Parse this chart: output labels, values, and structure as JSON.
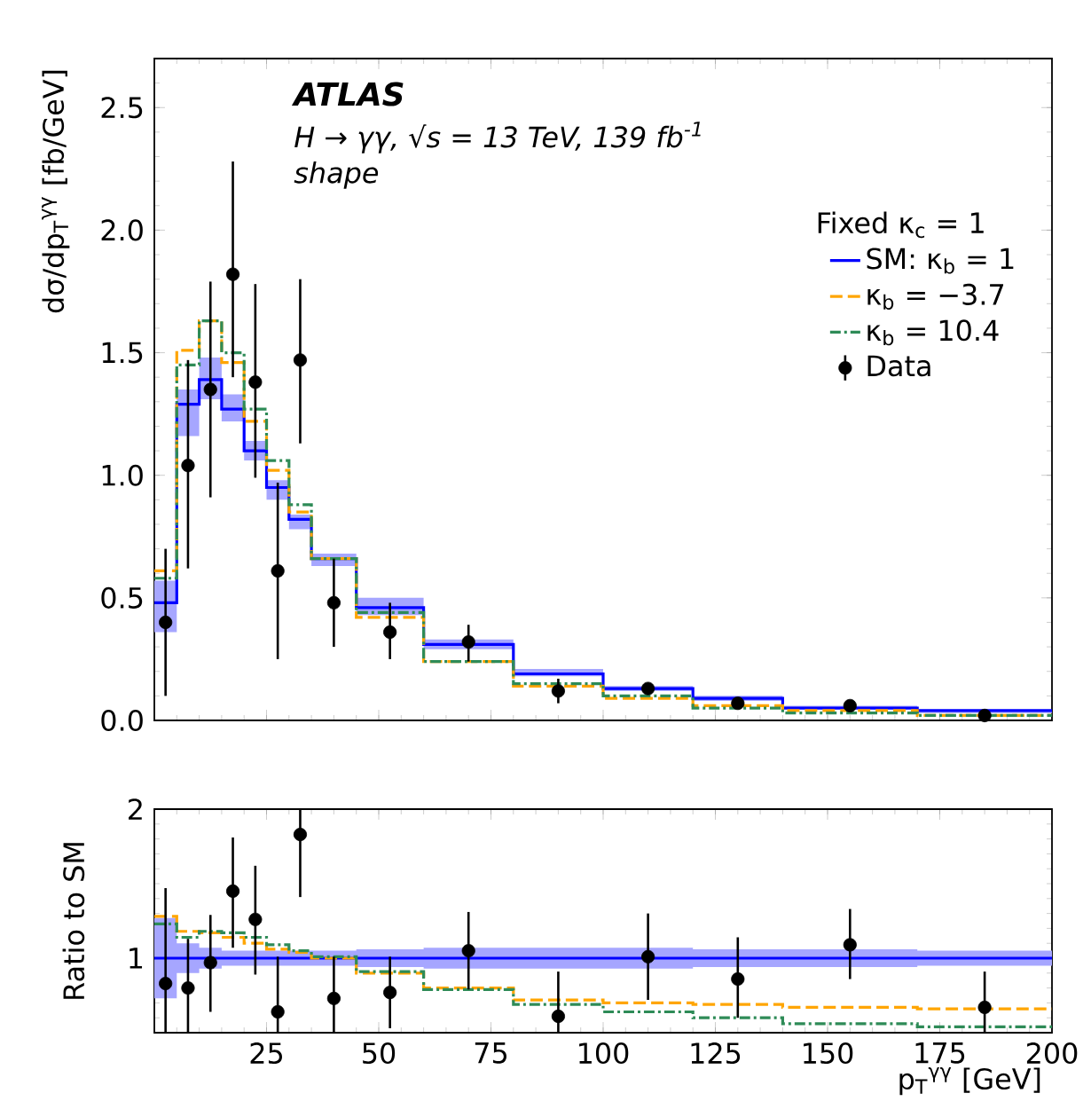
{
  "chart_data": [
    {
      "type": "step",
      "ylabel": "dσ/dp$_{T}$$^{γγ}$ [fb/GeV]",
      "legend_title": "Fixed κ$_{c}$ = 1",
      "legend": "top right",
      "annotations": [
        "**ATLAS**",
        "H → γγ, √s = 13 TeV, 139 fb$^{-1}$",
        "shape"
      ],
      "xlim": [
        0,
        200
      ],
      "xticks": [
        25,
        50,
        75,
        100,
        125,
        150,
        175,
        200
      ],
      "ylim": [
        0,
        2.7
      ],
      "yticks": [
        {
          "value": 0,
          "label": "0.0"
        },
        0.5,
        {
          "value": 1,
          "label": "1.0"
        },
        1.5,
        {
          "value": 2,
          "label": "2.0"
        },
        2.5
      ],
      "tick_labels": "y",
      "series": [
        {
          "name": "SM: κ$_{b}$ = 1",
          "type": "step",
          "color": "#0000ff",
          "line_style": "solid",
          "x": [
            0,
            5,
            10,
            15,
            20,
            25,
            30,
            35,
            45,
            60,
            80,
            100,
            120,
            140,
            170,
            200
          ],
          "values": [
            0.48,
            1.29,
            1.39,
            1.27,
            1.1,
            0.95,
            0.82,
            0.66,
            0.46,
            0.31,
            0.19,
            0.13,
            0.09,
            0.05,
            0.04,
            0.04
          ],
          "lower": [
            0.36,
            1.16,
            1.31,
            1.22,
            1.06,
            0.9,
            0.78,
            0.63,
            0.43,
            0.29,
            0.18,
            0.12,
            0.08,
            0.05,
            0.03,
            0.03
          ],
          "upper": [
            0.57,
            1.35,
            1.48,
            1.33,
            1.14,
            0.98,
            0.84,
            0.68,
            0.5,
            0.33,
            0.21,
            0.14,
            0.1,
            0.06,
            0.04,
            0.04
          ]
        },
        {
          "name": "κ$_{b}$ = −3.7",
          "type": "step",
          "color": "#ffa500",
          "line_style": "dashed",
          "x": [
            0,
            5,
            10,
            15,
            20,
            25,
            30,
            35,
            45,
            60,
            80,
            100,
            120,
            140,
            170,
            200
          ],
          "values": [
            0.61,
            1.51,
            1.63,
            1.46,
            1.22,
            1.02,
            0.85,
            0.66,
            0.42,
            0.24,
            0.14,
            0.09,
            0.06,
            0.04,
            0.02,
            0.02
          ]
        },
        {
          "name": "κ$_{b}$ = 10.4",
          "type": "step",
          "color": "#2e8b57",
          "line_style": "dashdot",
          "x": [
            0,
            5,
            10,
            15,
            20,
            25,
            30,
            35,
            45,
            60,
            80,
            100,
            120,
            140,
            170,
            200
          ],
          "values": [
            0.58,
            1.45,
            1.63,
            1.5,
            1.27,
            1.06,
            0.88,
            0.66,
            0.44,
            0.24,
            0.15,
            0.1,
            0.05,
            0.03,
            0.02,
            0.02
          ]
        },
        {
          "name": "Data",
          "type": "scatter",
          "color": "#000000",
          "marker": "circle",
          "x": [
            2.5,
            7.5,
            12.5,
            17.5,
            22.5,
            27.5,
            32.5,
            40,
            52.5,
            70,
            90,
            110,
            130,
            155,
            185
          ],
          "values": [
            0.4,
            1.04,
            1.35,
            1.82,
            1.38,
            0.61,
            1.47,
            0.48,
            0.36,
            0.32,
            0.12,
            0.13,
            0.07,
            0.06,
            0.02
          ],
          "errors": [
            [
              0.1,
              0.7
            ],
            [
              0.62,
              1.47
            ],
            [
              0.91,
              1.79
            ],
            [
              1.4,
              2.28
            ],
            [
              0.99,
              1.78
            ],
            [
              0.25,
              0.97
            ],
            [
              1.13,
              1.8
            ],
            [
              0.3,
              0.66
            ],
            [
              0.25,
              0.48
            ],
            [
              0.24,
              0.39
            ],
            [
              0.07,
              0.17
            ],
            [
              0.11,
              0.15
            ],
            [
              0.05,
              0.09
            ],
            [
              0.05,
              0.07
            ],
            [
              0.01,
              0.03
            ]
          ]
        }
      ]
    },
    {
      "type": "step",
      "xlabel": "p$_{T}$$^{γγ}$ [GeV]",
      "ylabel": "Ratio to SM",
      "xlim": [
        0,
        200
      ],
      "xticks": [
        25,
        50,
        75,
        100,
        125,
        150,
        175,
        200
      ],
      "ylim": [
        0.5,
        2.0
      ],
      "yticks": [
        1,
        2
      ],
      "series": [
        {
          "type": "step",
          "color": "#0000ff",
          "line_style": "solid",
          "x": [
            0,
            5,
            10,
            15,
            20,
            25,
            30,
            35,
            45,
            60,
            80,
            100,
            120,
            140,
            170,
            200
          ],
          "values": [
            1,
            1,
            1,
            1,
            1,
            1,
            1,
            1,
            1,
            1,
            1,
            1,
            1,
            1,
            1,
            1
          ],
          "lower": [
            0.73,
            0.9,
            0.93,
            0.95,
            0.95,
            0.95,
            0.95,
            0.95,
            0.94,
            0.93,
            0.93,
            0.93,
            0.94,
            0.94,
            0.95,
            0.95
          ],
          "upper": [
            1.27,
            1.1,
            1.07,
            1.05,
            1.05,
            1.05,
            1.05,
            1.05,
            1.06,
            1.07,
            1.07,
            1.07,
            1.06,
            1.06,
            1.05,
            1.05
          ]
        },
        {
          "type": "step",
          "color": "#ffa500",
          "line_style": "dashed",
          "x": [
            0,
            5,
            10,
            15,
            20,
            25,
            30,
            35,
            45,
            60,
            80,
            100,
            120,
            140,
            170,
            200
          ],
          "values": [
            1.28,
            1.18,
            1.17,
            1.14,
            1.1,
            1.06,
            1.04,
            1.0,
            0.9,
            0.8,
            0.72,
            0.7,
            0.69,
            0.67,
            0.66,
            0.66
          ]
        },
        {
          "type": "step",
          "color": "#2e8b57",
          "line_style": "dashdot",
          "x": [
            0,
            5,
            10,
            15,
            20,
            25,
            30,
            35,
            45,
            60,
            80,
            100,
            120,
            140,
            170,
            200
          ],
          "values": [
            1.23,
            1.14,
            1.18,
            1.17,
            1.14,
            1.09,
            1.05,
            1.01,
            0.91,
            0.79,
            0.69,
            0.64,
            0.6,
            0.56,
            0.54,
            0.54
          ]
        },
        {
          "type": "scatter",
          "color": "#000000",
          "marker": "circle",
          "x": [
            2.5,
            7.5,
            12.5,
            17.5,
            22.5,
            27.5,
            32.5,
            40,
            52.5,
            70,
            90,
            110,
            130,
            155,
            185
          ],
          "values": [
            0.83,
            0.8,
            0.97,
            1.45,
            1.26,
            0.64,
            1.83,
            0.73,
            0.77,
            1.05,
            0.61,
            1.01,
            0.86,
            1.09,
            0.67
          ],
          "errors": [
            [
              0.5,
              1.47
            ],
            [
              0.5,
              1.13
            ],
            [
              0.64,
              1.29
            ],
            [
              1.07,
              1.81
            ],
            [
              0.89,
              1.62
            ],
            [
              0.5,
              1.01
            ],
            [
              1.41,
              2.0
            ],
            [
              0.5,
              1.01
            ],
            [
              0.53,
              1.01
            ],
            [
              0.79,
              1.31
            ],
            [
              0.5,
              0.91
            ],
            [
              0.72,
              1.3
            ],
            [
              0.6,
              1.14
            ],
            [
              0.86,
              1.33
            ],
            [
              0.5,
              0.91
            ]
          ]
        }
      ]
    }
  ]
}
